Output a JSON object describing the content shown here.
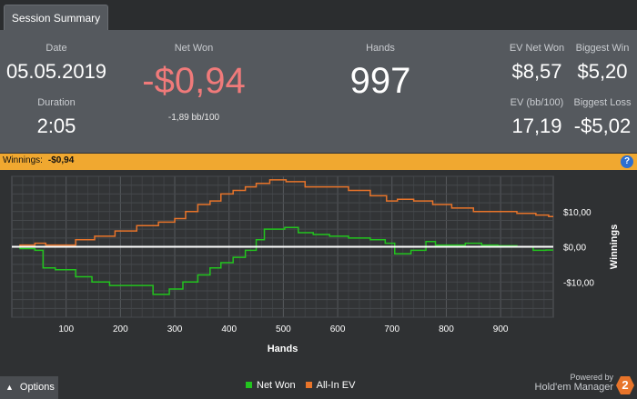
{
  "tab": {
    "label": "Session Summary"
  },
  "summary": {
    "date_label": "Date",
    "date_value": "05.05.2019",
    "duration_label": "Duration",
    "duration_value": "2:05",
    "net_won_label": "Net Won",
    "net_won_value": "-$0,94",
    "net_won_sub": "-1,89 bb/100",
    "hands_label": "Hands",
    "hands_value": "997",
    "ev_net_won_label": "EV Net Won",
    "ev_net_won_value": "$8,57",
    "biggest_win_label": "Biggest Win",
    "biggest_win_value": "$5,20",
    "ev_bb_label": "EV (bb/100)",
    "ev_bb_value": "17,19",
    "biggest_loss_label": "Biggest Loss",
    "biggest_loss_value": "-$5,02"
  },
  "winnings_bar": {
    "label": "Winnings:",
    "value": "-$0,94",
    "help_icon": "?"
  },
  "chart_data": {
    "type": "line",
    "xlabel": "Hands",
    "ylabel": "Winnings",
    "xlim": [
      0,
      997
    ],
    "ylim": [
      -20,
      20
    ],
    "x_ticks": [
      100,
      200,
      300,
      400,
      500,
      600,
      700,
      800,
      900
    ],
    "y_ticks": [
      10,
      0,
      -10
    ],
    "y_tick_labels": [
      "$10,00",
      "$0,00",
      "-$10,00"
    ],
    "grid": true,
    "series": [
      {
        "name": "Net Won",
        "color": "#22c41e",
        "points": [
          [
            0,
            0
          ],
          [
            30,
            -0.5
          ],
          [
            55,
            -1
          ],
          [
            60,
            -6
          ],
          [
            100,
            -6.5
          ],
          [
            135,
            -8.5
          ],
          [
            160,
            -10
          ],
          [
            200,
            -11
          ],
          [
            240,
            -11
          ],
          [
            280,
            -13.5
          ],
          [
            300,
            -12
          ],
          [
            330,
            -10
          ],
          [
            355,
            -8
          ],
          [
            375,
            -6
          ],
          [
            395,
            -4.5
          ],
          [
            420,
            -3
          ],
          [
            440,
            -1
          ],
          [
            460,
            2
          ],
          [
            470,
            5
          ],
          [
            490,
            5
          ],
          [
            515,
            5.5
          ],
          [
            540,
            4
          ],
          [
            570,
            3.5
          ],
          [
            600,
            3
          ],
          [
            640,
            2.5
          ],
          [
            680,
            2
          ],
          [
            695,
            1
          ],
          [
            715,
            -2
          ],
          [
            755,
            -1
          ],
          [
            770,
            1.5
          ],
          [
            790,
            0.5
          ],
          [
            820,
            0.5
          ],
          [
            850,
            1
          ],
          [
            880,
            0.5
          ],
          [
            910,
            0.3
          ],
          [
            950,
            0
          ],
          [
            970,
            -1
          ],
          [
            997,
            -0.94
          ]
        ]
      },
      {
        "name": "All-In EV",
        "color": "#e8742a",
        "points": [
          [
            0,
            0
          ],
          [
            30,
            0.5
          ],
          [
            55,
            1
          ],
          [
            70,
            0.5
          ],
          [
            100,
            0.5
          ],
          [
            135,
            2
          ],
          [
            170,
            3
          ],
          [
            210,
            4.5
          ],
          [
            250,
            6
          ],
          [
            290,
            7
          ],
          [
            310,
            8
          ],
          [
            330,
            10
          ],
          [
            355,
            12
          ],
          [
            375,
            13
          ],
          [
            395,
            15
          ],
          [
            420,
            16
          ],
          [
            440,
            17
          ],
          [
            460,
            18
          ],
          [
            490,
            19
          ],
          [
            520,
            18.5
          ],
          [
            560,
            17
          ],
          [
            600,
            17
          ],
          [
            640,
            16
          ],
          [
            680,
            14.5
          ],
          [
            700,
            13
          ],
          [
            720,
            13.5
          ],
          [
            760,
            13
          ],
          [
            790,
            12
          ],
          [
            830,
            11
          ],
          [
            870,
            10
          ],
          [
            910,
            10
          ],
          [
            950,
            9.5
          ],
          [
            980,
            9
          ],
          [
            997,
            8.57
          ]
        ]
      }
    ],
    "zero_line_color": "#ffffff"
  },
  "bottom": {
    "options_label": "Options",
    "options_icon": "caret-up-icon",
    "legend": [
      {
        "label": "Net Won",
        "color": "#22c41e"
      },
      {
        "label": "All-In EV",
        "color": "#e8742a"
      }
    ],
    "powered_by": "Powered by",
    "brand_name": "Hold'em Manager",
    "brand_badge": "2"
  }
}
